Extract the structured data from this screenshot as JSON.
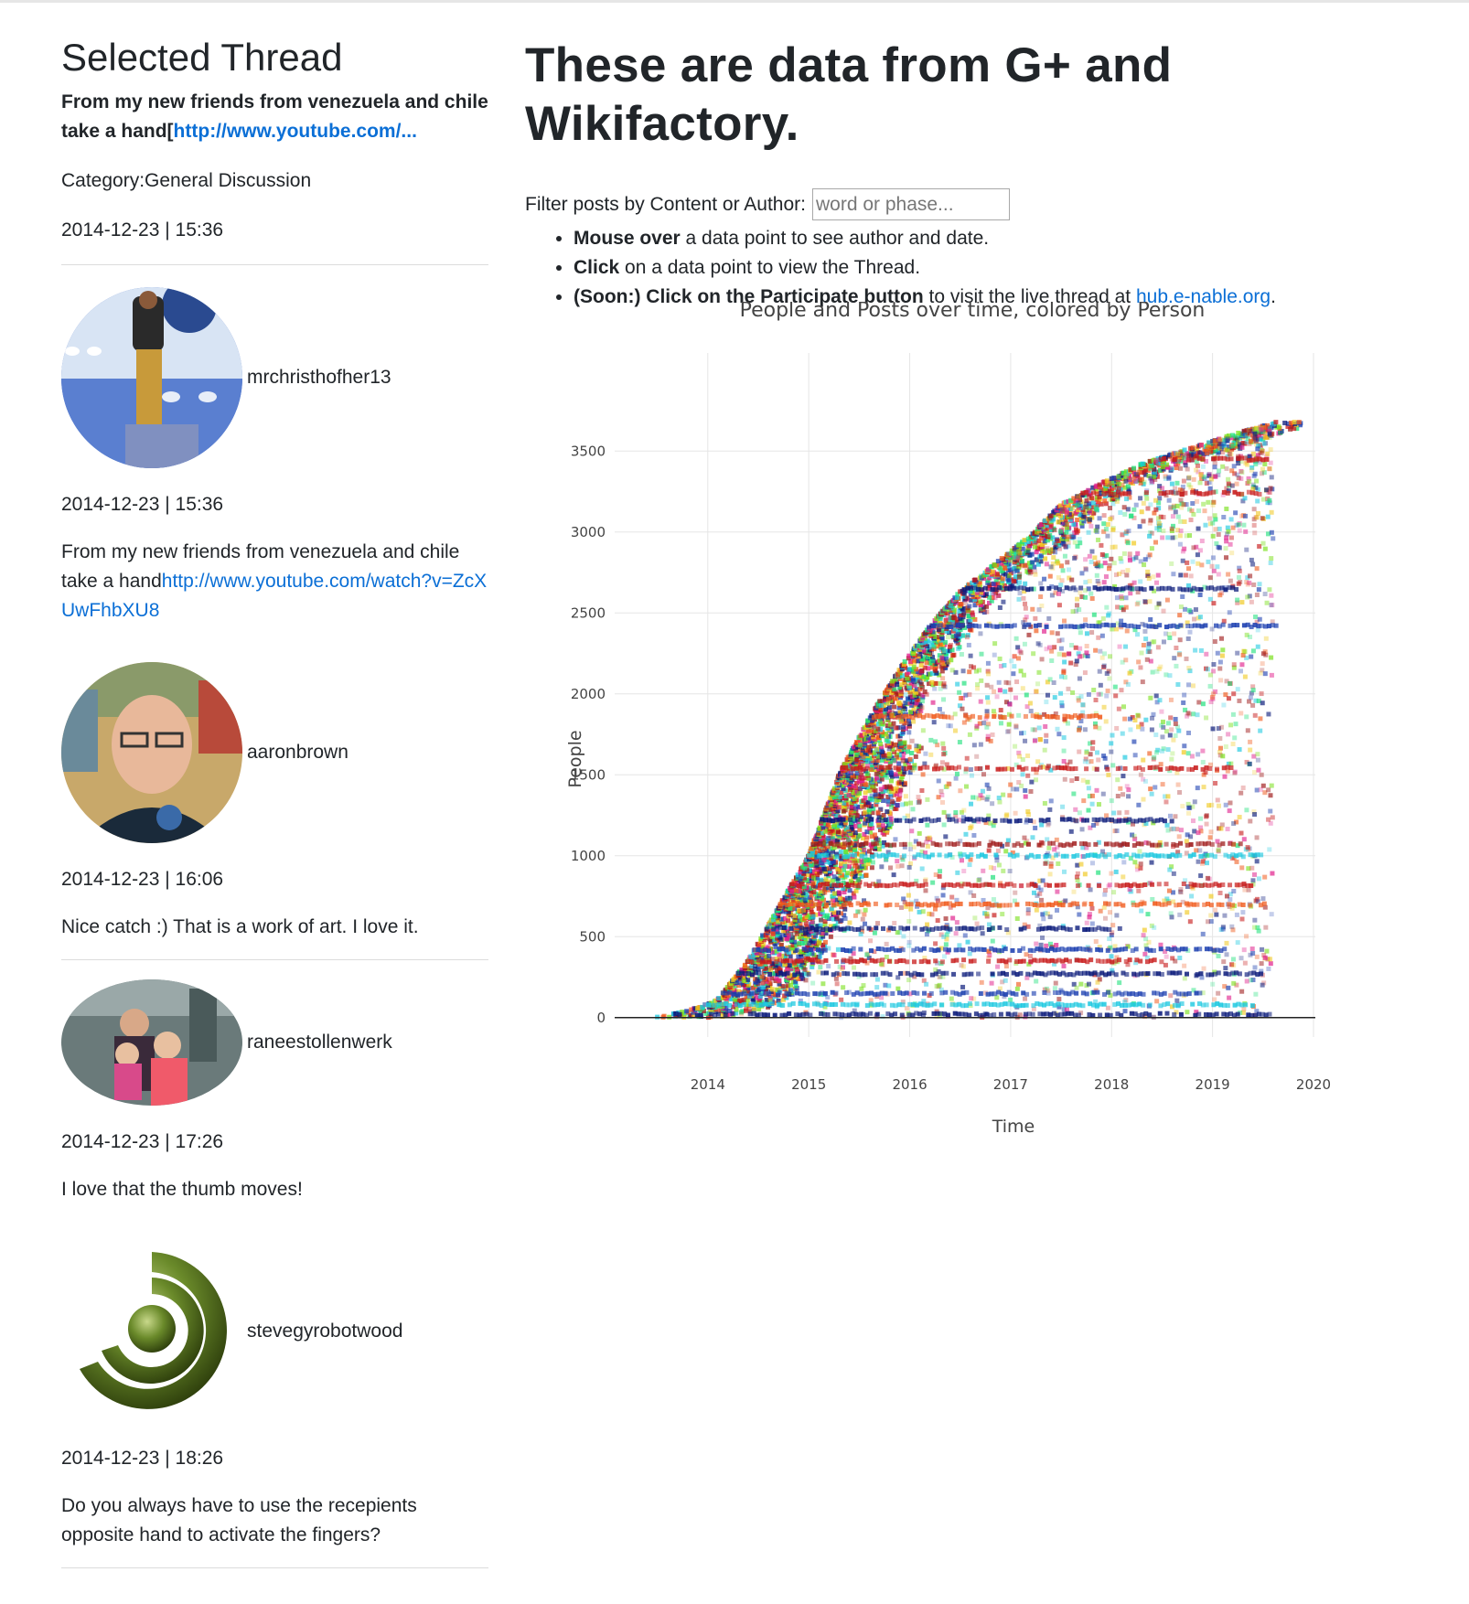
{
  "sidebar": {
    "heading": "Selected Thread",
    "thread": {
      "title_text": "From my new friends from venezuela and chile take a hand[",
      "title_link": "http://www.youtube.com/...",
      "category": "Category:General Discussion",
      "date": "2014-12-23 | 15:36"
    },
    "posts": [
      {
        "author": "mrchristhofher13",
        "date": "2014-12-23 | 15:36",
        "text": "From my new friends from venezuela and chile take a hand",
        "link": "http://www.youtube.com/watch?v=ZcXUwFhbXU8"
      },
      {
        "author": "aaronbrown",
        "date": "2014-12-23 | 16:06",
        "text": "Nice catch :) That is a work of art. I love it."
      },
      {
        "author": "raneestollenwerk",
        "date": "2014-12-23 | 17:26",
        "text": "I love that the thumb moves!"
      },
      {
        "author": "stevegyrobotwood",
        "date": "2014-12-23 | 18:26",
        "text": "Do you always have to use the recepients opposite hand to activate the fingers?"
      }
    ]
  },
  "main": {
    "title": "These are data from G+ and Wikifactory.",
    "filter_label": "Filter posts by Content or Author:",
    "filter_placeholder": "word or phase...",
    "instructions": [
      {
        "bold": "Mouse over",
        "rest": " a data point to see author and date."
      },
      {
        "bold": "Click",
        "rest": " on a data point to view the Thread."
      },
      {
        "bold": "(Soon:) Click on the Participate button",
        "rest": " to visit the live thread at ",
        "link": "hub.e-nable.org",
        "end": "."
      }
    ]
  },
  "chart_data": {
    "type": "scatter",
    "title": "People and Posts over time, colored by Person",
    "xlabel": "Time",
    "ylabel": "People",
    "xlim": [
      2013.15,
      2020.0
    ],
    "ylim": [
      -120,
      3880
    ],
    "xticks": [
      2014,
      2015,
      2016,
      2017,
      2018,
      2019,
      2020
    ],
    "yticks": [
      0,
      500,
      1000,
      1500,
      2000,
      2500,
      3000,
      3500
    ],
    "grid": true,
    "envelope": {
      "x": [
        2013.5,
        2013.8,
        2014.1,
        2014.4,
        2014.7,
        2015.0,
        2015.3,
        2015.6,
        2015.9,
        2016.2,
        2016.5,
        2016.8,
        2017.2,
        2017.5,
        2017.9,
        2018.3,
        2018.7,
        2019.0,
        2019.3,
        2019.65
      ],
      "y": [
        0,
        40,
        110,
        350,
        680,
        1000,
        1500,
        1850,
        2150,
        2420,
        2630,
        2780,
        2980,
        3170,
        3300,
        3420,
        3500,
        3560,
        3620,
        3680
      ]
    },
    "bands": [
      {
        "y": 20,
        "end": 2019.6,
        "color": "#0a1a7a"
      },
      {
        "y": 80,
        "end": 2019.4,
        "color": "#1cc8e0"
      },
      {
        "y": 150,
        "end": 2018.9,
        "color": "#1c3fb0"
      },
      {
        "y": 270,
        "end": 2019.5,
        "color": "#0a1a7a"
      },
      {
        "y": 350,
        "end": 2018.5,
        "color": "#c81c1c"
      },
      {
        "y": 420,
        "end": 2019.2,
        "color": "#1c3fb0"
      },
      {
        "y": 550,
        "end": 2018.2,
        "color": "#0a1a7a"
      },
      {
        "y": 700,
        "end": 2019.6,
        "color": "#f05a1c"
      },
      {
        "y": 820,
        "end": 2019.4,
        "color": "#c81c1c"
      },
      {
        "y": 1000,
        "end": 2019.5,
        "color": "#1cc8e0"
      },
      {
        "y": 1070,
        "end": 2019.3,
        "color": "#a01c1c"
      },
      {
        "y": 1220,
        "end": 2018.6,
        "color": "#0a1a7a"
      },
      {
        "y": 1540,
        "end": 2019.2,
        "color": "#c81c1c"
      },
      {
        "y": 1860,
        "end": 2017.9,
        "color": "#f05a1c"
      },
      {
        "y": 2420,
        "end": 2019.65,
        "color": "#1c3fb0"
      },
      {
        "y": 2650,
        "end": 2019.3,
        "color": "#0a1a7a"
      },
      {
        "y": 3240,
        "end": 2019.5,
        "color": "#c81c1c"
      },
      {
        "y": 3450,
        "end": 2019.6,
        "color": "#c81c1c"
      }
    ],
    "palette": [
      "#0a1a7a",
      "#1c3fb0",
      "#1cc8e0",
      "#c81c1c",
      "#a01c1c",
      "#f05a1c",
      "#f0c81c",
      "#7ae01c",
      "#e01c8a",
      "#1ce07a"
    ]
  },
  "colors": {
    "link": "#0b6fd6",
    "text": "#212529",
    "grid": "#e5e5e5"
  }
}
